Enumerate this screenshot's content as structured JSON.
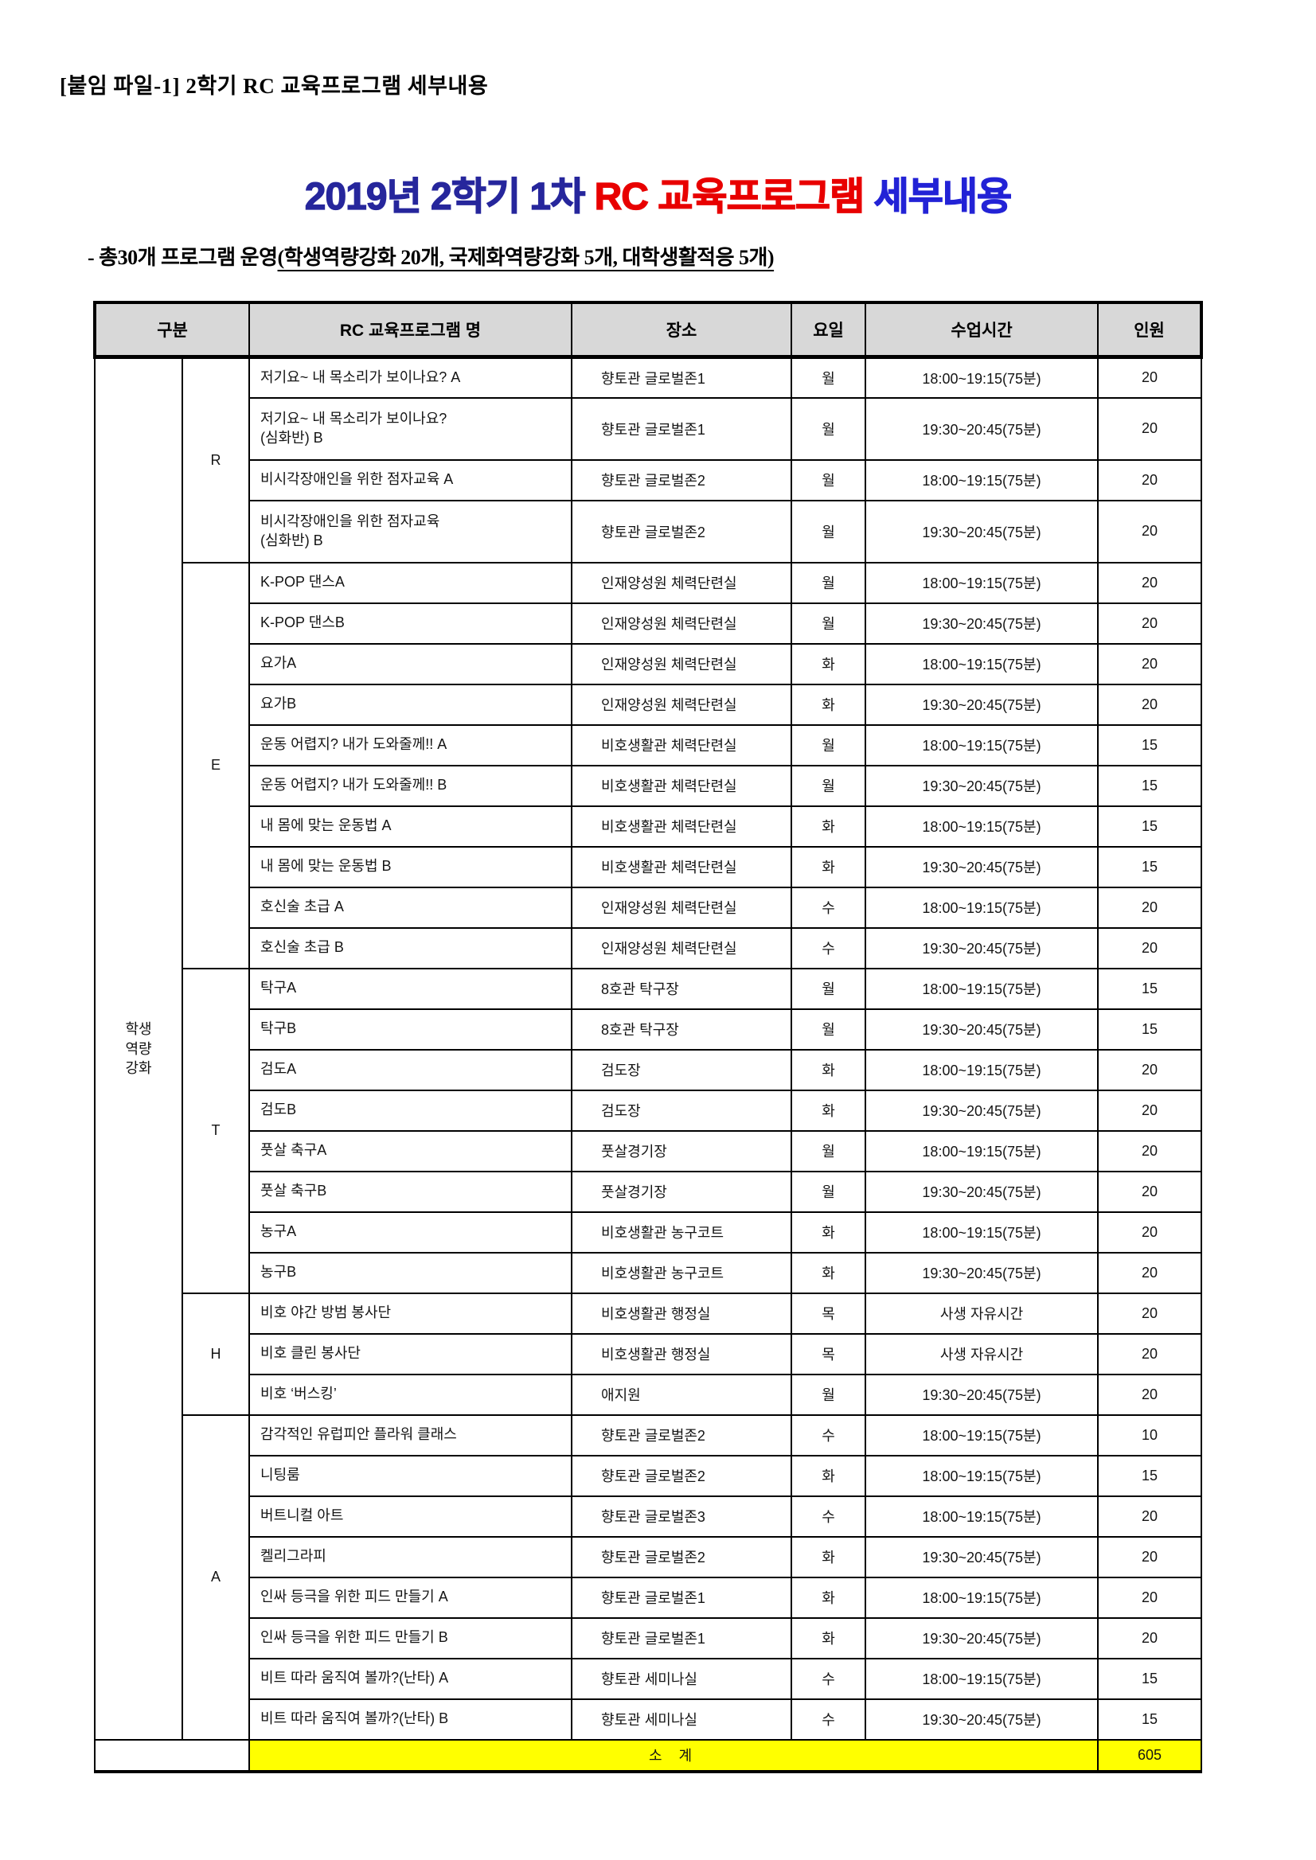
{
  "page": {
    "attachment_label": "[붙임 파일-1] 2학기 RC 교육프로그램 세부내용",
    "title": {
      "part1": "2019년 2학기 1차 ",
      "part2": "RC 교육프로그램 ",
      "part3": "세부내용",
      "part1_color": "#26269c",
      "part2_color": "#e80000",
      "part3_color": "#2323d6"
    },
    "subtitle": {
      "prefix": "- 총30개 프로그램 운영",
      "underlined": "(학생역량강화 20개, 국제화역량강화 5개, 대학생활적응 5개)"
    }
  },
  "table": {
    "headers": [
      "구분",
      "RC 교육프로그램 명",
      "장소",
      "요일",
      "수업시간",
      "인원"
    ],
    "header_bg": "#d8d8d8",
    "category": "학생역량강화",
    "category_display": "학생\n역량\n강화",
    "groups": [
      {
        "code": "R",
        "rows": [
          {
            "name": "저기요~ 내 목소리가 보이나요? A",
            "place": "향토관 글로벌존1",
            "day": "월",
            "time": "18:00~19:15(75분)",
            "count": "20"
          },
          {
            "name": "저기요~ 내 목소리가 보이나요?\n(심화반) B",
            "tall": true,
            "place": "향토관 글로벌존1",
            "day": "월",
            "time": "19:30~20:45(75분)",
            "count": "20"
          },
          {
            "name": "비시각장애인을 위한 점자교육 A",
            "place": "향토관 글로벌존2",
            "day": "월",
            "time": "18:00~19:15(75분)",
            "count": "20"
          },
          {
            "name": "비시각장애인을 위한 점자교육\n(심화반) B",
            "tall": true,
            "place": "향토관 글로벌존2",
            "day": "월",
            "time": "19:30~20:45(75분)",
            "count": "20"
          }
        ]
      },
      {
        "code": "E",
        "rows": [
          {
            "name": "K-POP 댄스A",
            "place": "인재양성원 체력단련실",
            "day": "월",
            "time": "18:00~19:15(75분)",
            "count": "20"
          },
          {
            "name": "K-POP 댄스B",
            "place": "인재양성원 체력단련실",
            "day": "월",
            "time": "19:30~20:45(75분)",
            "count": "20"
          },
          {
            "name": "요가A",
            "place": "인재양성원 체력단련실",
            "day": "화",
            "time": "18:00~19:15(75분)",
            "count": "20"
          },
          {
            "name": "요가B",
            "place": "인재양성원 체력단련실",
            "day": "화",
            "time": "19:30~20:45(75분)",
            "count": "20"
          },
          {
            "name": "운동 어렵지? 내가 도와줄께!! A",
            "place": "비호생활관 체력단련실",
            "day": "월",
            "time": "18:00~19:15(75분)",
            "count": "15"
          },
          {
            "name": "운동 어렵지? 내가 도와줄께!! B",
            "place": "비호생활관 체력단련실",
            "day": "월",
            "time": "19:30~20:45(75분)",
            "count": "15"
          },
          {
            "name": "내 몸에 맞는 운동법 A",
            "place": "비호생활관 체력단련실",
            "day": "화",
            "time": "18:00~19:15(75분)",
            "count": "15"
          },
          {
            "name": "내 몸에 맞는 운동법 B",
            "place": "비호생활관 체력단련실",
            "day": "화",
            "time": "19:30~20:45(75분)",
            "count": "15"
          },
          {
            "name": "호신술 초급 A",
            "place": "인재양성원 체력단련실",
            "day": "수",
            "time": "18:00~19:15(75분)",
            "count": "20"
          },
          {
            "name": "호신술 초급 B",
            "place": "인재양성원 체력단련실",
            "day": "수",
            "time": "19:30~20:45(75분)",
            "count": "20"
          }
        ]
      },
      {
        "code": "T",
        "rows": [
          {
            "name": "탁구A",
            "place": "8호관 탁구장",
            "day": "월",
            "time": "18:00~19:15(75분)",
            "count": "15"
          },
          {
            "name": "탁구B",
            "place": "8호관 탁구장",
            "day": "월",
            "time": "19:30~20:45(75분)",
            "count": "15"
          },
          {
            "name": "검도A",
            "place": "검도장",
            "day": "화",
            "time": "18:00~19:15(75분)",
            "count": "20"
          },
          {
            "name": "검도B",
            "place": "검도장",
            "day": "화",
            "time": "19:30~20:45(75분)",
            "count": "20"
          },
          {
            "name": "풋살 축구A",
            "place": "풋살경기장",
            "day": "월",
            "time": "18:00~19:15(75분)",
            "count": "20"
          },
          {
            "name": "풋살 축구B",
            "place": "풋살경기장",
            "day": "월",
            "time": "19:30~20:45(75분)",
            "count": "20"
          },
          {
            "name": "농구A",
            "place": "비호생활관 농구코트",
            "day": "화",
            "time": "18:00~19:15(75분)",
            "count": "20"
          },
          {
            "name": "농구B",
            "place": "비호생활관 농구코트",
            "day": "화",
            "time": "19:30~20:45(75분)",
            "count": "20"
          }
        ]
      },
      {
        "code": "H",
        "rows": [
          {
            "name": "비호 야간 방범 봉사단",
            "place": "비호생활관 행정실",
            "day": "목",
            "time": "사생 자유시간",
            "count": "20"
          },
          {
            "name": "비호 클린 봉사단",
            "place": "비호생활관 행정실",
            "day": "목",
            "time": "사생 자유시간",
            "count": "20"
          },
          {
            "name": "비호 ‘버스킹’",
            "place": "애지원",
            "day": "월",
            "time": "19:30~20:45(75분)",
            "count": "20"
          }
        ]
      },
      {
        "code": "A",
        "rows": [
          {
            "name": "감각적인 유럽피안 플라워 클래스",
            "place": "향토관 글로벌존2",
            "day": "수",
            "time": "18:00~19:15(75분)",
            "count": "10"
          },
          {
            "name": "니팅룸",
            "place": "향토관 글로벌존2",
            "day": "화",
            "time": "18:00~19:15(75분)",
            "count": "15"
          },
          {
            "name": "버트니컬 아트",
            "place": "향토관 글로벌존3",
            "day": "수",
            "time": "18:00~19:15(75분)",
            "count": "20"
          },
          {
            "name": "켈리그라피",
            "place": "향토관 글로벌존2",
            "day": "화",
            "time": "19:30~20:45(75분)",
            "count": "20"
          },
          {
            "name": "인싸 등극을 위한 피드 만들기 A",
            "place": "향토관 글로벌존1",
            "day": "화",
            "time": "18:00~19:15(75분)",
            "count": "20"
          },
          {
            "name": "인싸 등극을 위한 피드 만들기 B",
            "place": "향토관 글로벌존1",
            "day": "화",
            "time": "19:30~20:45(75분)",
            "count": "20"
          },
          {
            "name": "비트 따라 움직여 볼까?(난타) A",
            "place": "향토관 세미나실",
            "day": "수",
            "time": "18:00~19:15(75분)",
            "count": "15"
          },
          {
            "name": "비트 따라 움직여 볼까?(난타) B",
            "place": "향토관 세미나실",
            "day": "수",
            "time": "19:30~20:45(75분)",
            "count": "15"
          }
        ]
      }
    ],
    "subtotal": {
      "label": "소 계",
      "value": "605",
      "bg": "#ffff00"
    }
  }
}
